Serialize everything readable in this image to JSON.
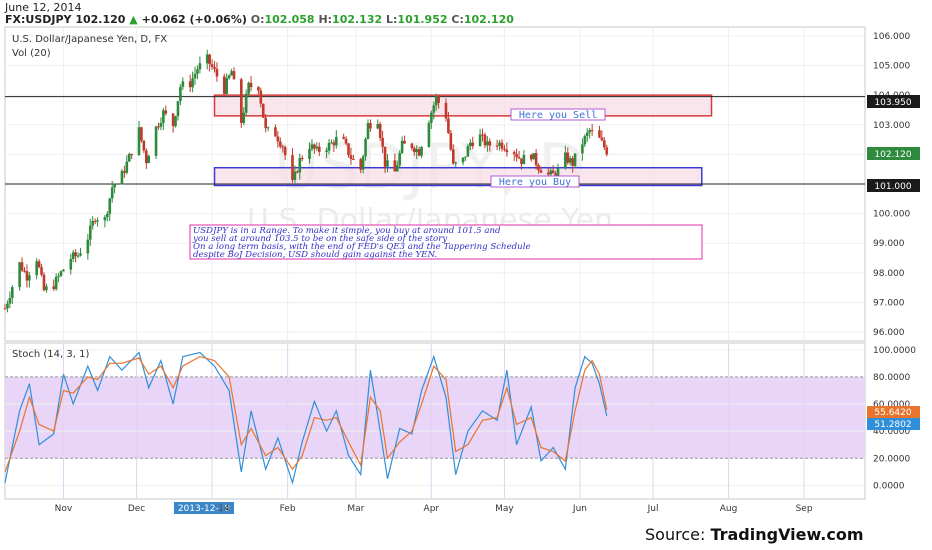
{
  "header": {
    "date": "June 12, 2014",
    "symbol": "FX:USDJPY",
    "last": "102.120",
    "change_arrow": "▲",
    "change": "+0.062 (+0.06%)",
    "o_label": "O:",
    "o": "102.058",
    "h_label": "H:",
    "h": "102.132",
    "l_label": "L:",
    "l": "101.952",
    "c_label": "C:",
    "c": "102.120"
  },
  "main_pane": {
    "title": "U.S. Dollar/Japanese Yen, D, FX",
    "volume_label": "Vol (20)",
    "watermark_symbol": "USDJPY, D",
    "watermark_name": "U.S. Dollar/Japanese Yen",
    "resistance_label": "103.950",
    "support_label": "101.000",
    "last_price_label": "102.120",
    "sell_zone_text": "Here you Sell",
    "buy_zone_text": "Here you Buy",
    "annotation_lines": [
      "USDJPY is in a Range. To make it simple, you buy at around 101.5 and",
      "you sell at around 103.5 to be on the safe side of the story",
      "On a long term basis, with the end of FED's QE3 and the Tappering Schedule",
      "despite BoJ Decision, USD should gain against the YEN."
    ]
  },
  "stoch_pane": {
    "title": "Stoch (14, 3, 1)",
    "k_label": "51.2802",
    "d_label": "55.6420"
  },
  "x_axis": {
    "months": [
      "Nov",
      "Dec",
      "2013-12-18",
      "14",
      "Feb",
      "Mar",
      "Apr",
      "May",
      "Jun",
      "Jul",
      "Aug",
      "Sep"
    ]
  },
  "source": {
    "prefix": "Source: ",
    "brand": "TradingView.com"
  },
  "chart_data": [
    {
      "type": "candlestick",
      "title": "U.S. Dollar/Japanese Yen, D, FX",
      "ylim": [
        95.7,
        106.3
      ],
      "yticks": [
        96.0,
        97.0,
        98.0,
        99.0,
        100.0,
        101.0,
        102.0,
        103.0,
        104.0,
        105.0,
        106.0
      ],
      "ytick_labels": [
        "96.000",
        "97.000",
        "98.000",
        "99.000",
        "100.000",
        "101.000",
        "102.000",
        "103.000",
        "104.000",
        "105.000",
        "106.000"
      ],
      "x_start": "2013-10-08",
      "x_end": "2014-09-26",
      "close_points": [
        [
          "2013-10-08",
          96.8
        ],
        [
          "2013-10-10",
          97.3
        ],
        [
          "2013-10-14",
          98.3
        ],
        [
          "2013-10-17",
          97.9
        ],
        [
          "2013-10-21",
          98.5
        ],
        [
          "2013-10-24",
          97.4
        ],
        [
          "2013-10-28",
          97.6
        ],
        [
          "2013-10-31",
          98.0
        ],
        [
          "2013-11-04",
          98.5
        ],
        [
          "2013-11-07",
          98.6
        ],
        [
          "2013-11-11",
          99.2
        ],
        [
          "2013-11-14",
          99.9
        ],
        [
          "2013-11-18",
          99.8
        ],
        [
          "2013-11-21",
          100.9
        ],
        [
          "2013-11-25",
          101.3
        ],
        [
          "2013-11-28",
          101.9
        ],
        [
          "2013-12-02",
          102.8
        ],
        [
          "2013-12-05",
          101.8
        ],
        [
          "2013-12-09",
          102.9
        ],
        [
          "2013-12-12",
          103.4
        ],
        [
          "2013-12-16",
          103.0
        ],
        [
          "2013-12-19",
          104.3
        ],
        [
          "2013-12-23",
          104.4
        ],
        [
          "2013-12-26",
          104.9
        ],
        [
          "2013-12-30",
          105.2
        ],
        [
          "2014-01-02",
          104.8
        ],
        [
          "2014-01-06",
          104.2
        ],
        [
          "2014-01-09",
          104.8
        ],
        [
          "2014-01-13",
          103.1
        ],
        [
          "2014-01-16",
          104.3
        ],
        [
          "2014-01-20",
          104.3
        ],
        [
          "2014-01-23",
          102.8
        ],
        [
          "2014-01-27",
          102.7
        ],
        [
          "2014-01-30",
          102.3
        ],
        [
          "2014-02-03",
          101.0
        ],
        [
          "2014-02-06",
          101.8
        ],
        [
          "2014-02-10",
          102.3
        ],
        [
          "2014-02-13",
          102.1
        ],
        [
          "2014-02-18",
          102.3
        ],
        [
          "2014-02-21",
          102.5
        ],
        [
          "2014-02-24",
          102.4
        ],
        [
          "2014-02-27",
          101.9
        ],
        [
          "2014-03-03",
          101.5
        ],
        [
          "2014-03-06",
          103.0
        ],
        [
          "2014-03-10",
          103.2
        ],
        [
          "2014-03-13",
          101.7
        ],
        [
          "2014-03-17",
          101.4
        ],
        [
          "2014-03-20",
          102.3
        ],
        [
          "2014-03-24",
          102.3
        ],
        [
          "2014-03-27",
          102.1
        ],
        [
          "2014-03-31",
          103.2
        ],
        [
          "2014-04-03",
          103.9
        ],
        [
          "2014-04-07",
          103.3
        ],
        [
          "2014-04-10",
          101.6
        ],
        [
          "2014-04-14",
          101.8
        ],
        [
          "2014-04-17",
          102.4
        ],
        [
          "2014-04-21",
          102.6
        ],
        [
          "2014-04-24",
          102.3
        ],
        [
          "2014-04-28",
          102.4
        ],
        [
          "2014-05-01",
          102.3
        ],
        [
          "2014-05-05",
          102.1
        ],
        [
          "2014-05-08",
          101.8
        ],
        [
          "2014-05-12",
          102.0
        ],
        [
          "2014-05-15",
          101.6
        ],
        [
          "2014-05-19",
          101.3
        ],
        [
          "2014-05-22",
          101.3
        ],
        [
          "2014-05-26",
          101.9
        ],
        [
          "2014-05-29",
          101.7
        ],
        [
          "2014-06-02",
          102.4
        ],
        [
          "2014-06-05",
          102.8
        ],
        [
          "2014-06-09",
          102.5
        ],
        [
          "2014-06-12",
          102.12
        ]
      ],
      "horizontal_lines": [
        103.95,
        101.0
      ],
      "sell_zone": {
        "from_date": "2014-01-02",
        "to_date": "2014-07-25",
        "low": 103.3,
        "high": 104.0
      },
      "buy_zone": {
        "from_date": "2014-01-02",
        "to_date": "2014-07-21",
        "low": 100.95,
        "high": 101.55
      }
    },
    {
      "type": "line",
      "title": "Stoch (14, 3, 1)",
      "ylim": [
        -10,
        105
      ],
      "yticks": [
        0,
        20,
        40,
        60,
        80,
        100
      ],
      "ytick_labels": [
        "0.0000",
        "20.0000",
        "40.0000",
        "60.0000",
        "80.0000",
        "100.0000"
      ],
      "band": [
        20,
        80
      ],
      "series": [
        {
          "name": "%K",
          "points": [
            [
              "2013-10-08",
              2
            ],
            [
              "2013-10-14",
              55
            ],
            [
              "2013-10-18",
              75
            ],
            [
              "2013-10-22",
              30
            ],
            [
              "2013-10-28",
              38
            ],
            [
              "2013-11-01",
              82
            ],
            [
              "2013-11-05",
              60
            ],
            [
              "2013-11-11",
              88
            ],
            [
              "2013-11-15",
              70
            ],
            [
              "2013-11-20",
              95
            ],
            [
              "2013-11-25",
              85
            ],
            [
              "2013-12-02",
              98
            ],
            [
              "2013-12-06",
              72
            ],
            [
              "2013-12-11",
              92
            ],
            [
              "2013-12-16",
              60
            ],
            [
              "2013-12-20",
              95
            ],
            [
              "2013-12-27",
              98
            ],
            [
              "2014-01-02",
              88
            ],
            [
              "2014-01-08",
              70
            ],
            [
              "2014-01-13",
              10
            ],
            [
              "2014-01-17",
              55
            ],
            [
              "2014-01-23",
              12
            ],
            [
              "2014-01-28",
              35
            ],
            [
              "2014-02-03",
              2
            ],
            [
              "2014-02-07",
              32
            ],
            [
              "2014-02-12",
              62
            ],
            [
              "2014-02-17",
              40
            ],
            [
              "2014-02-21",
              55
            ],
            [
              "2014-02-26",
              22
            ],
            [
              "2014-03-03",
              8
            ],
            [
              "2014-03-07",
              85
            ],
            [
              "2014-03-11",
              40
            ],
            [
              "2014-03-14",
              5
            ],
            [
              "2014-03-19",
              42
            ],
            [
              "2014-03-24",
              38
            ],
            [
              "2014-03-28",
              70
            ],
            [
              "2014-04-02",
              95
            ],
            [
              "2014-04-07",
              65
            ],
            [
              "2014-04-11",
              8
            ],
            [
              "2014-04-16",
              40
            ],
            [
              "2014-04-22",
              55
            ],
            [
              "2014-04-28",
              48
            ],
            [
              "2014-05-02",
              85
            ],
            [
              "2014-05-06",
              30
            ],
            [
              "2014-05-12",
              58
            ],
            [
              "2014-05-16",
              18
            ],
            [
              "2014-05-21",
              28
            ],
            [
              "2014-05-26",
              12
            ],
            [
              "2014-05-30",
              72
            ],
            [
              "2014-06-03",
              95
            ],
            [
              "2014-06-06",
              90
            ],
            [
              "2014-06-09",
              75
            ],
            [
              "2014-06-12",
              51.2802
            ]
          ]
        },
        {
          "name": "%D",
          "points": [
            [
              "2013-10-08",
              10
            ],
            [
              "2013-10-14",
              40
            ],
            [
              "2013-10-18",
              65
            ],
            [
              "2013-10-22",
              45
            ],
            [
              "2013-10-28",
              40
            ],
            [
              "2013-11-01",
              70
            ],
            [
              "2013-11-05",
              68
            ],
            [
              "2013-11-11",
              80
            ],
            [
              "2013-11-15",
              78
            ],
            [
              "2013-11-20",
              90
            ],
            [
              "2013-11-25",
              90
            ],
            [
              "2013-12-02",
              94
            ],
            [
              "2013-12-06",
              82
            ],
            [
              "2013-12-11",
              88
            ],
            [
              "2013-12-16",
              72
            ],
            [
              "2013-12-20",
              88
            ],
            [
              "2013-12-27",
              95
            ],
            [
              "2014-01-02",
              92
            ],
            [
              "2014-01-08",
              80
            ],
            [
              "2014-01-13",
              30
            ],
            [
              "2014-01-17",
              42
            ],
            [
              "2014-01-23",
              22
            ],
            [
              "2014-01-28",
              28
            ],
            [
              "2014-02-03",
              12
            ],
            [
              "2014-02-07",
              22
            ],
            [
              "2014-02-12",
              50
            ],
            [
              "2014-02-17",
              48
            ],
            [
              "2014-02-21",
              50
            ],
            [
              "2014-02-26",
              32
            ],
            [
              "2014-03-03",
              15
            ],
            [
              "2014-03-07",
              65
            ],
            [
              "2014-03-11",
              55
            ],
            [
              "2014-03-14",
              20
            ],
            [
              "2014-03-19",
              32
            ],
            [
              "2014-03-24",
              40
            ],
            [
              "2014-03-28",
              60
            ],
            [
              "2014-04-02",
              88
            ],
            [
              "2014-04-07",
              78
            ],
            [
              "2014-04-11",
              25
            ],
            [
              "2014-04-16",
              30
            ],
            [
              "2014-04-22",
              48
            ],
            [
              "2014-04-28",
              50
            ],
            [
              "2014-05-02",
              72
            ],
            [
              "2014-05-06",
              45
            ],
            [
              "2014-05-12",
              50
            ],
            [
              "2014-05-16",
              28
            ],
            [
              "2014-05-21",
              25
            ],
            [
              "2014-05-26",
              18
            ],
            [
              "2014-05-30",
              55
            ],
            [
              "2014-06-03",
              85
            ],
            [
              "2014-06-06",
              92
            ],
            [
              "2014-06-09",
              82
            ],
            [
              "2014-06-12",
              55.642
            ]
          ]
        }
      ]
    }
  ],
  "colors": {
    "bull": "#2e8b3d",
    "bear": "#c0392b",
    "k_line": "#2f8fd8",
    "d_line": "#e8742e",
    "band_fill": "#e8d5f7",
    "sell_zone": "#d63a3a",
    "buy_zone": "#3a3ad6",
    "annotation_text": "#3030c8",
    "annotation_border": "#e02ea8",
    "label_bg": "#1a1a1a"
  }
}
